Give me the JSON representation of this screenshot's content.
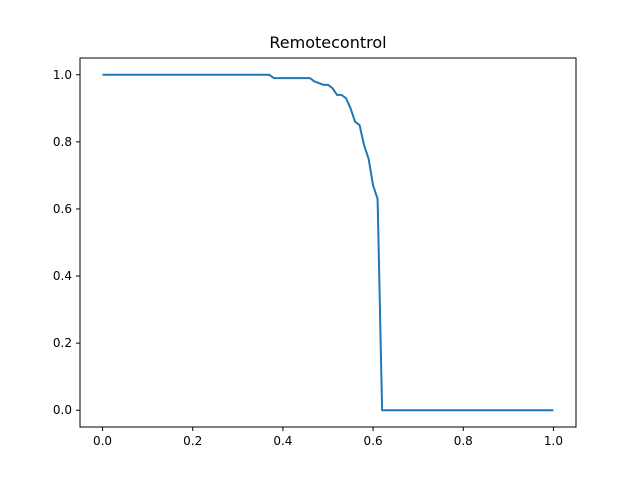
{
  "chart_data": {
    "type": "line",
    "title": "Remotecontrol",
    "xlabel": "",
    "ylabel": "",
    "xlim": [
      -0.05,
      1.05
    ],
    "ylim": [
      -0.05,
      1.05
    ],
    "grid": false,
    "x_ticks": [
      0.0,
      0.2,
      0.4,
      0.6,
      0.8,
      1.0
    ],
    "x_tick_labels": [
      "0.0",
      "0.2",
      "0.4",
      "0.6",
      "0.8",
      "1.0"
    ],
    "y_ticks": [
      0.0,
      0.2,
      0.4,
      0.6,
      0.8,
      1.0
    ],
    "y_tick_labels": [
      "0.0",
      "0.2",
      "0.4",
      "0.6",
      "0.8",
      "1.0"
    ],
    "colors": {
      "series": "#1f77b4"
    },
    "series": [
      {
        "x": [
          0.0,
          0.37,
          0.38,
          0.46,
          0.47,
          0.49,
          0.5,
          0.51,
          0.52,
          0.53,
          0.54,
          0.55,
          0.56,
          0.57,
          0.58,
          0.59,
          0.6,
          0.61,
          0.62,
          0.63,
          1.0
        ],
        "y": [
          1.0,
          1.0,
          0.99,
          0.99,
          0.98,
          0.97,
          0.97,
          0.96,
          0.94,
          0.94,
          0.93,
          0.9,
          0.86,
          0.85,
          0.79,
          0.75,
          0.67,
          0.63,
          0.0,
          0.0,
          0.0
        ]
      }
    ]
  }
}
